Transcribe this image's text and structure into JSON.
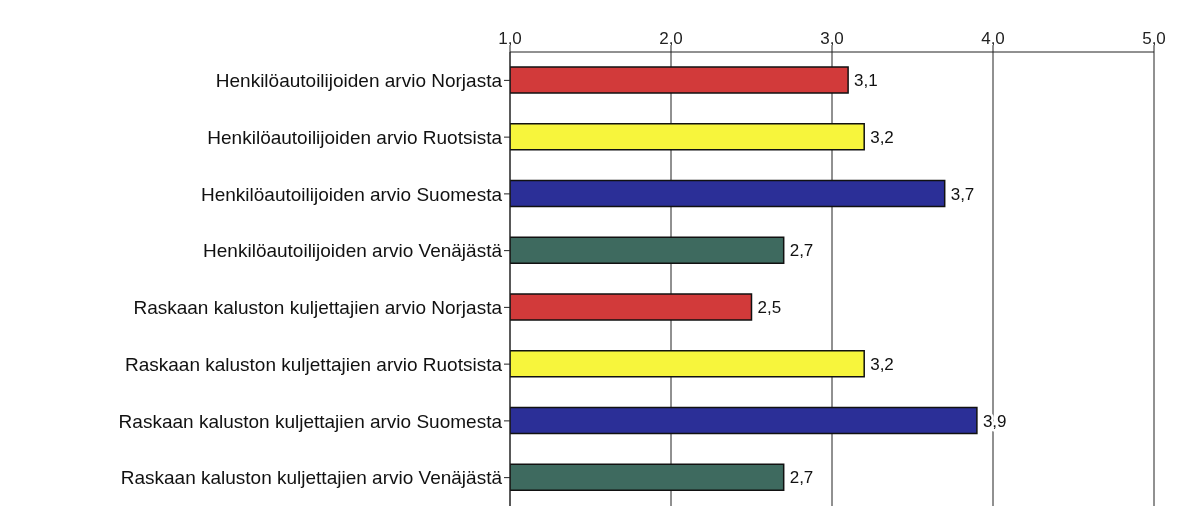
{
  "chart_data": {
    "type": "bar",
    "orientation": "horizontal",
    "categories": [
      "Henkilöautoilijoiden arvio Norjasta",
      "Henkilöautoilijoiden arvio Ruotsista",
      "Henkilöautoilijoiden arvio Suomesta",
      "Henkilöautoilijoiden arvio Venäjästä",
      "Raskaan kaluston kuljettajien arvio Norjasta",
      "Raskaan kaluston kuljettajien arvio Ruotsista",
      "Raskaan kaluston kuljettajien arvio Suomesta",
      "Raskaan kaluston kuljettajien arvio Venäjästä"
    ],
    "values": [
      3.1,
      3.2,
      3.7,
      2.7,
      2.5,
      3.2,
      3.9,
      2.7
    ],
    "colors": [
      "#d23a3a",
      "#f7f53c",
      "#2b2f97",
      "#3e6a5f",
      "#d23a3a",
      "#f7f53c",
      "#2b2f97",
      "#3e6a5f"
    ],
    "value_labels": [
      "3,1",
      "3,2",
      "3,7",
      "2,7",
      "2,5",
      "3,2",
      "3,9",
      "2,7"
    ],
    "xlim": [
      1,
      5
    ],
    "xticks": [
      {
        "value": 1,
        "label": "1,0"
      },
      {
        "value": 2,
        "label": "2,0"
      },
      {
        "value": 3,
        "label": "3,0"
      },
      {
        "value": 4,
        "label": "4,0"
      },
      {
        "value": 5,
        "label": "5,0"
      }
    ],
    "grid": "x"
  }
}
